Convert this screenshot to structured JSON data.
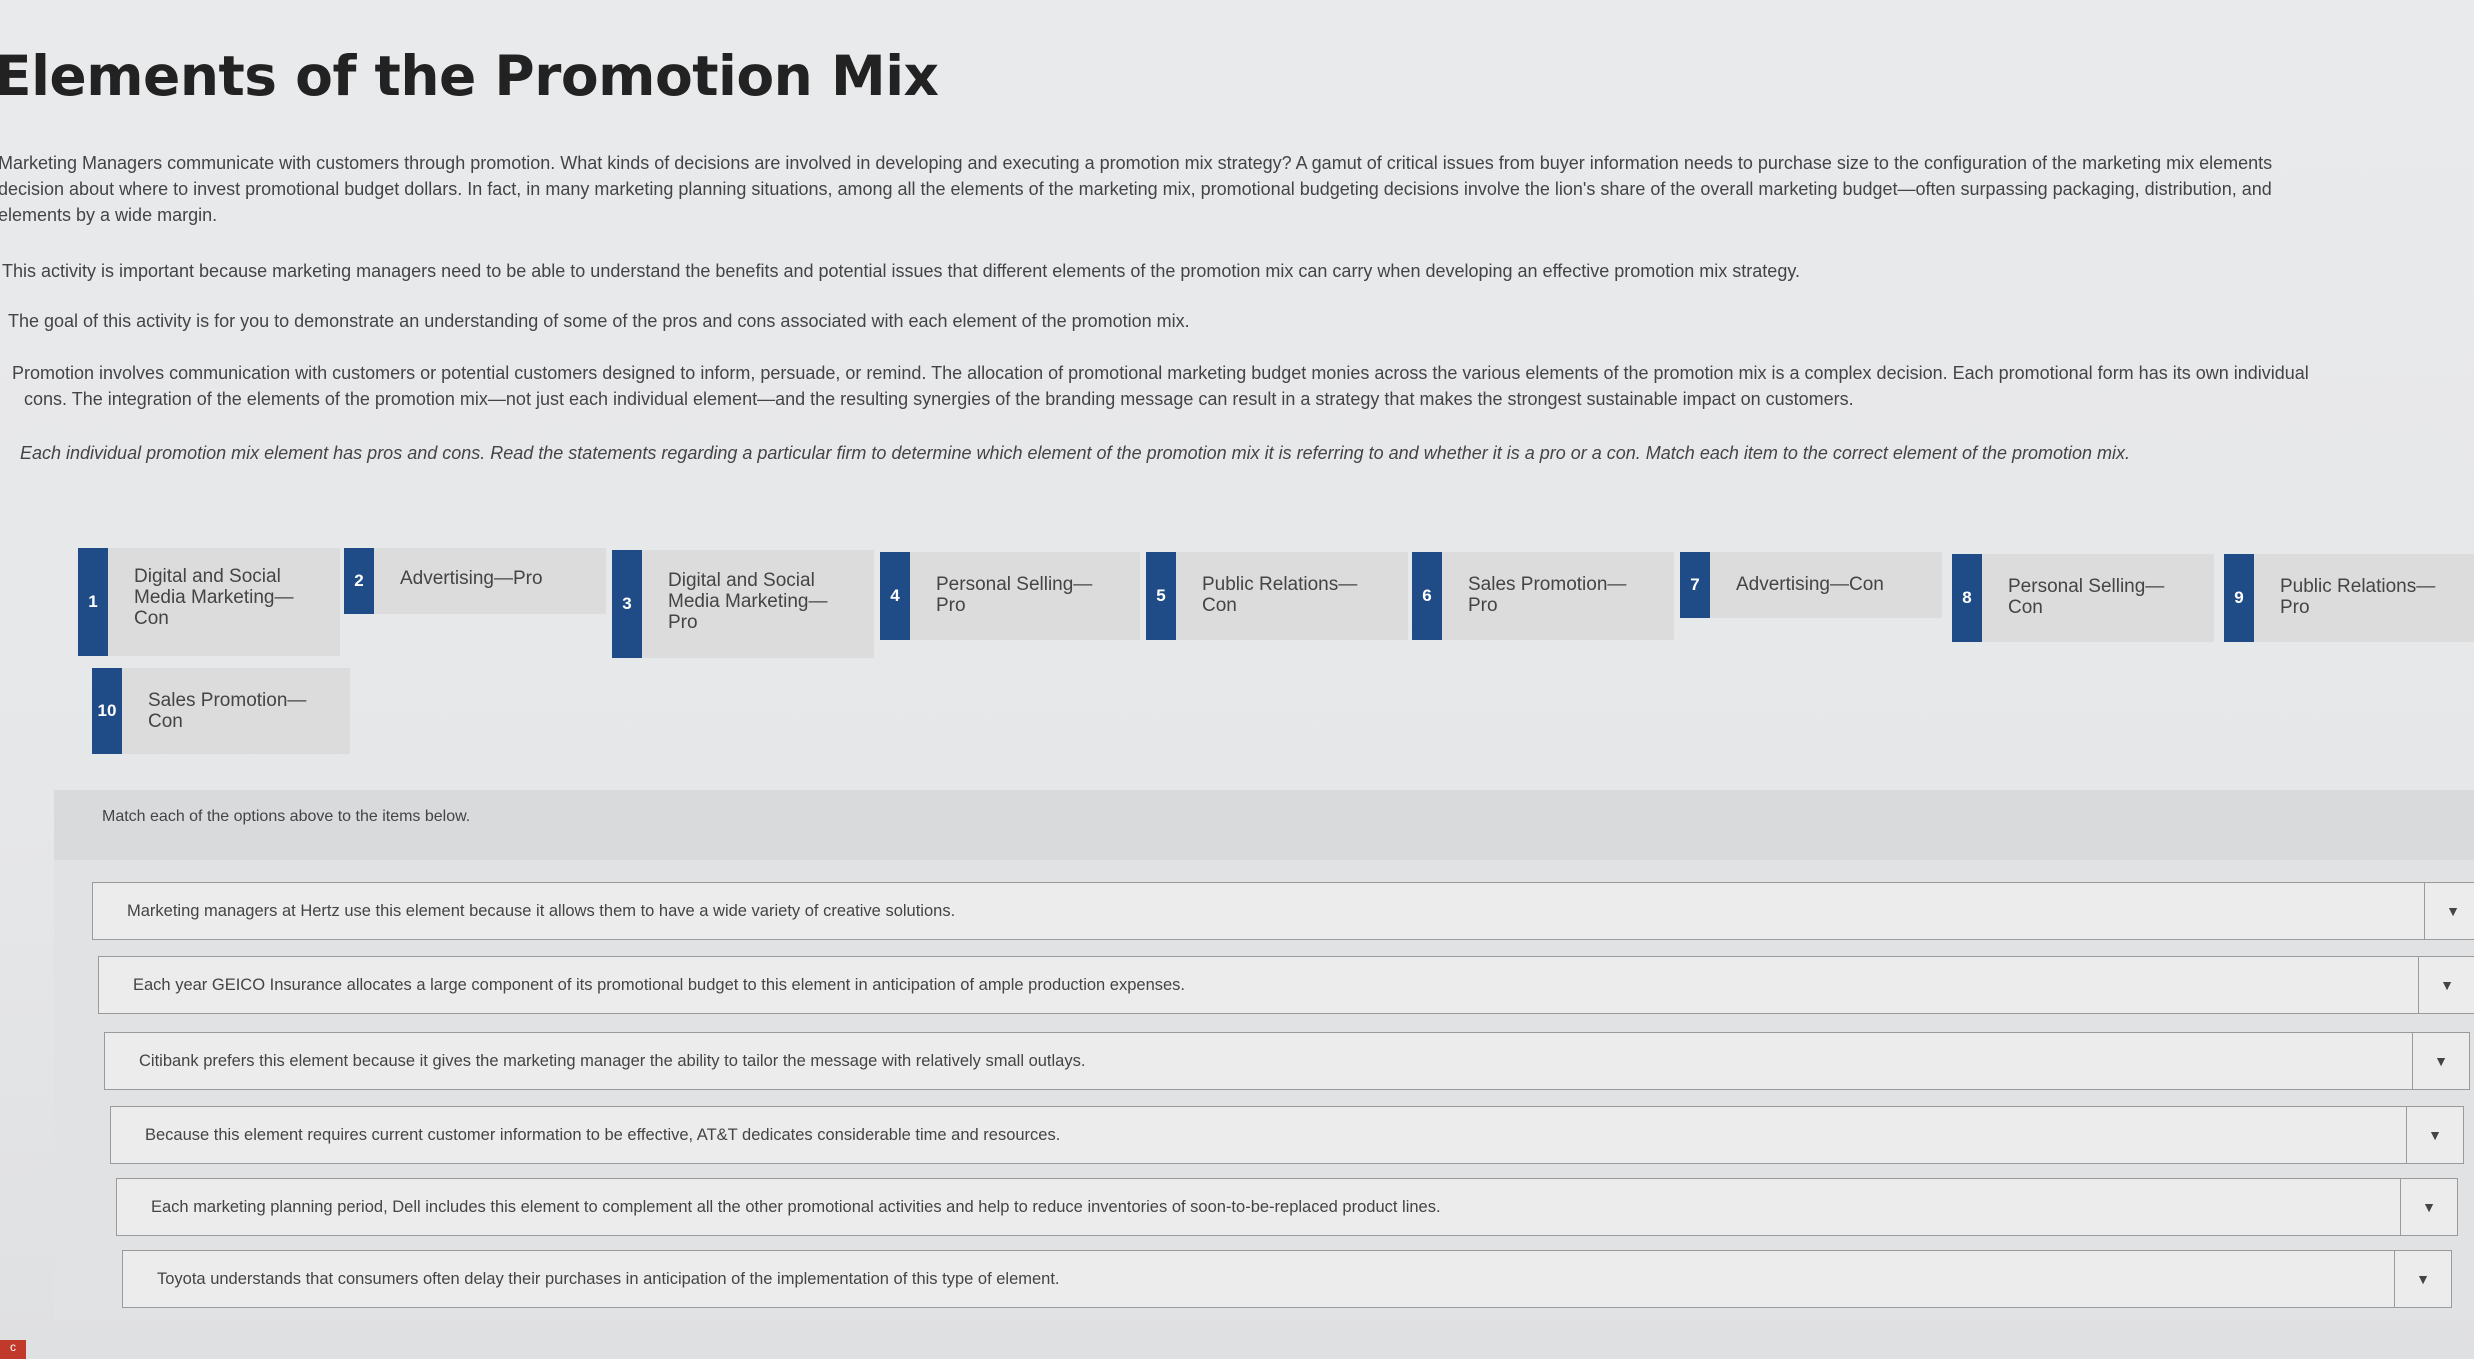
{
  "page": {
    "title": "Elements of the Promotion Mix",
    "paragraphs": [
      "Marketing Managers communicate with customers through promotion. What kinds of decisions are involved in developing and executing a promotion mix strategy? A gamut of critical issues from buyer information needs to purchase size to the configuration of the marketing mix elements",
      "decision about where to invest promotional budget dollars. In fact, in many marketing planning situations, among all the elements of the marketing mix, promotional budgeting decisions involve the lion's share of the overall marketing budget—often surpassing packaging, distribution, and",
      "elements by a wide margin."
    ],
    "importance": "This activity is important because marketing managers need to be able to understand the benefits and potential issues that different elements of the promotion mix can carry when developing an effective promotion mix strategy.",
    "goal": "The goal of this activity is for you to demonstrate an understanding of some of the pros and cons associated with each element of the promotion mix.",
    "promotion_1": "Promotion involves communication with customers or potential customers designed to inform, persuade, or remind. The allocation of promotional marketing budget monies across the various elements of the promotion mix is a complex decision. Each promotional form has its own individual",
    "promotion_2": "cons. The integration of the elements of the promotion mix—not just each individual element—and the resulting synergies of the branding message can result in a strategy that makes the strongest sustainable impact on customers.",
    "task": "Each individual promotion mix element has pros and cons. Read the statements regarding a particular firm to determine which element of the promotion mix it is referring to and whether it is a pro or a con. Match each item to the correct element of the promotion mix."
  },
  "options": [
    {
      "num": "1",
      "label": "Digital and Social Media Marketing—Con"
    },
    {
      "num": "2",
      "label": "Advertising—Pro"
    },
    {
      "num": "3",
      "label": "Digital and Social Media Marketing—Pro"
    },
    {
      "num": "4",
      "label": "Personal Selling—Pro"
    },
    {
      "num": "5",
      "label": "Public Relations—Con"
    },
    {
      "num": "6",
      "label": "Sales Promotion—Pro"
    },
    {
      "num": "7",
      "label": "Advertising—Con"
    },
    {
      "num": "8",
      "label": "Personal Selling—Con"
    },
    {
      "num": "9",
      "label": "Public Relations—Pro"
    },
    {
      "num": "10",
      "label": "Sales Promotion—Con"
    }
  ],
  "match": {
    "instructions": "Match each of the options above to the items below.",
    "items": [
      "Marketing managers at Hertz use this element because it allows them to have a wide variety of creative solutions.",
      "Each year GEICO Insurance allocates a large component of its promotional budget to this element in anticipation of ample production expenses.",
      "Citibank prefers this element because it gives the marketing manager the ability to tailor the message with relatively small outlays.",
      "Because this element requires current customer information to be effective, AT&T dedicates considerable time and resources.",
      "Each marketing planning period, Dell includes this element to complement all the other promotional activities and help to reduce inventories of soon-to-be-replaced product lines.",
      "Toyota understands that consumers often delay their purchases in anticipation of the implementation of this type of element."
    ],
    "dropdown_icon": "caret-down-icon"
  },
  "colors": {
    "number_badge": "#1f4b87",
    "tile_bg": "#dcdcdd",
    "corner_tab": "#c0392b"
  },
  "corner_tab_text": "c"
}
